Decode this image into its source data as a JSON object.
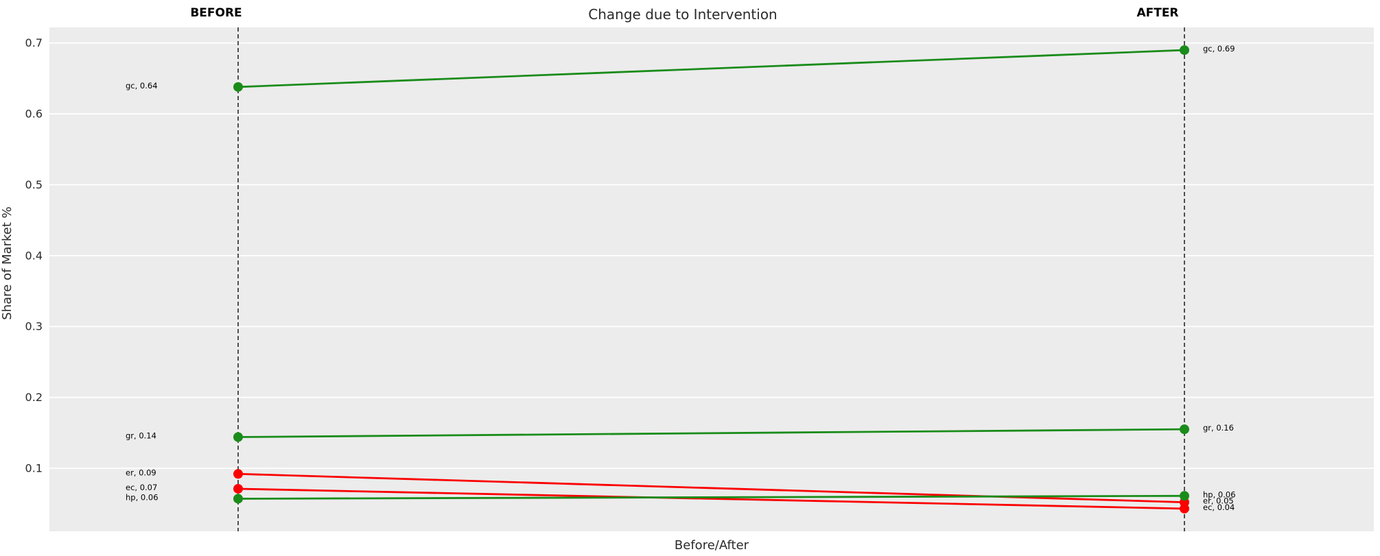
{
  "chart_data": {
    "type": "line",
    "variant": "slopegraph",
    "title": "Change due to Intervention",
    "xlabel": "Before/After",
    "ylabel": "Share of Market %",
    "column_labels": {
      "before": "BEFORE",
      "after": "AFTER"
    },
    "x_categories": [
      "BEFORE",
      "AFTER"
    ],
    "yticks": [
      0.1,
      0.2,
      0.3,
      0.4,
      0.5,
      0.6,
      0.7
    ],
    "ytick_labels": [
      "0.1",
      "0.2",
      "0.3",
      "0.4",
      "0.5",
      "0.6",
      "0.7"
    ],
    "ylim": [
      0.011,
      0.722
    ],
    "grid": "horizontal major gridlines, white on gray panel",
    "legend_position": "none",
    "colors": {
      "increase": "#1a8c1a",
      "decrease": "#fb0000",
      "panel_background": "#ececec",
      "gridline": "#ffffff",
      "guide_line": "#1a1a1a",
      "text": "#2b2b2b",
      "annotation_text": "#000000"
    },
    "series": [
      {
        "name": "gc",
        "trend": "increase",
        "before": 0.638,
        "after": 0.69,
        "label_before": "gc, 0.64",
        "label_after": "gc, 0.69"
      },
      {
        "name": "gr",
        "trend": "increase",
        "before": 0.144,
        "after": 0.155,
        "label_before": "gr, 0.14",
        "label_after": "gr, 0.16"
      },
      {
        "name": "er",
        "trend": "decrease",
        "before": 0.092,
        "after": 0.052,
        "label_before": "er, 0.09",
        "label_after": "er, 0.05"
      },
      {
        "name": "ec",
        "trend": "decrease",
        "before": 0.071,
        "after": 0.043,
        "label_before": "ec, 0.07",
        "label_after": "ec, 0.04"
      },
      {
        "name": "hp",
        "trend": "increase",
        "before": 0.057,
        "after": 0.061,
        "label_before": "hp, 0.06",
        "label_after": "hp, 0.06"
      }
    ]
  }
}
